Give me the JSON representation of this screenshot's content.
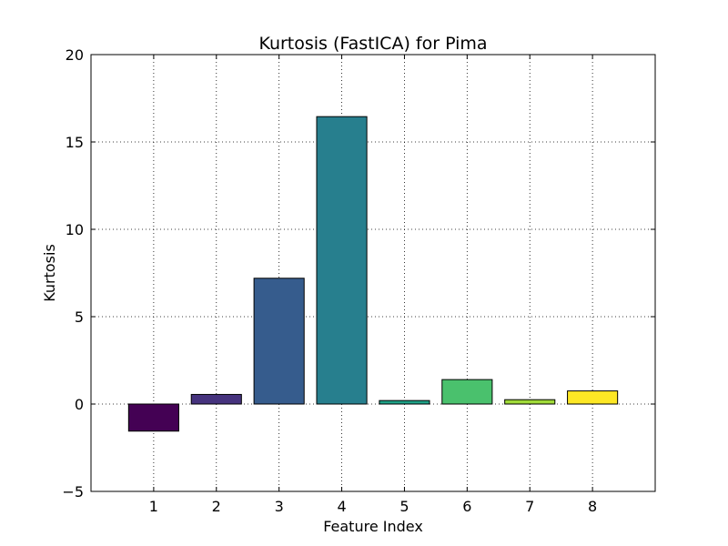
{
  "chart_data": {
    "type": "bar",
    "title": "Kurtosis (FastICA) for Pima",
    "xlabel": "Feature Index",
    "ylabel": "Kurtosis",
    "categories": [
      "1",
      "2",
      "3",
      "4",
      "5",
      "6",
      "7",
      "8"
    ],
    "values": [
      -1.55,
      0.55,
      7.2,
      16.45,
      0.2,
      1.4,
      0.25,
      0.75
    ],
    "colors": [
      "#440154",
      "#46337e",
      "#365c8d",
      "#277f8e",
      "#1fa187",
      "#4ac16d",
      "#a0da39",
      "#fde725"
    ],
    "ylim": [
      -5,
      20
    ],
    "xlim": [
      0,
      9
    ],
    "yticks": [
      -5,
      0,
      5,
      10,
      15,
      20
    ],
    "yticklabels": [
      "−5",
      "0",
      "5",
      "10",
      "15",
      "20"
    ],
    "grid": true,
    "grid_style": "dotted"
  }
}
